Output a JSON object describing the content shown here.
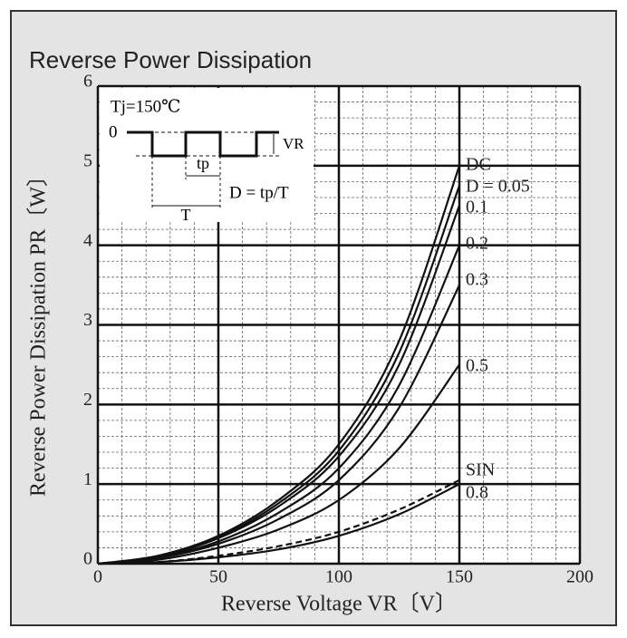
{
  "chart_data": {
    "type": "line",
    "title": "Reverse Power Dissipation",
    "x_label": "Reverse Voltage VR〔V〕",
    "y_label": "Reverse Power Dissipation PR〔W〕",
    "x": [
      0,
      25,
      50,
      75,
      100,
      125,
      150
    ],
    "series": [
      {
        "name": "DC",
        "color": "#111111",
        "dashed": false,
        "values": [
          0,
          0.1,
          0.35,
          0.8,
          1.5,
          2.8,
          5.0
        ]
      },
      {
        "name": "D = 0.05",
        "color": "#111111",
        "dashed": false,
        "values": [
          0,
          0.09,
          0.33,
          0.76,
          1.42,
          2.65,
          4.75
        ]
      },
      {
        "name": "0.1",
        "color": "#111111",
        "dashed": false,
        "values": [
          0,
          0.09,
          0.32,
          0.72,
          1.35,
          2.5,
          4.5
        ]
      },
      {
        "name": "0.2",
        "color": "#111111",
        "dashed": false,
        "values": [
          0,
          0.08,
          0.28,
          0.64,
          1.2,
          2.24,
          4.0
        ]
      },
      {
        "name": "0.3",
        "color": "#111111",
        "dashed": false,
        "values": [
          0,
          0.07,
          0.25,
          0.56,
          1.05,
          1.96,
          3.5
        ]
      },
      {
        "name": "0.5",
        "color": "#111111",
        "dashed": false,
        "values": [
          0,
          0.05,
          0.2,
          0.43,
          0.8,
          1.45,
          2.5
        ]
      },
      {
        "name": "SIN",
        "color": "#111111",
        "dashed": true,
        "values": [
          0,
          0.02,
          0.1,
          0.22,
          0.4,
          0.68,
          1.05
        ]
      },
      {
        "name": "0.8",
        "color": "#111111",
        "dashed": false,
        "values": [
          0,
          0.02,
          0.08,
          0.18,
          0.35,
          0.62,
          1.0
        ]
      }
    ],
    "xlim": [
      0,
      200
    ],
    "xticks": [
      0,
      50,
      100,
      150,
      200
    ],
    "ylim": [
      0,
      6
    ],
    "yticks": [
      0,
      1,
      2,
      3,
      4,
      5,
      6
    ],
    "grid": true,
    "inset": {
      "condition": "Tj=150℃",
      "zero": "0",
      "vr": "VR",
      "tp": "tp",
      "period": "T",
      "formula": "D = tp/T"
    }
  }
}
